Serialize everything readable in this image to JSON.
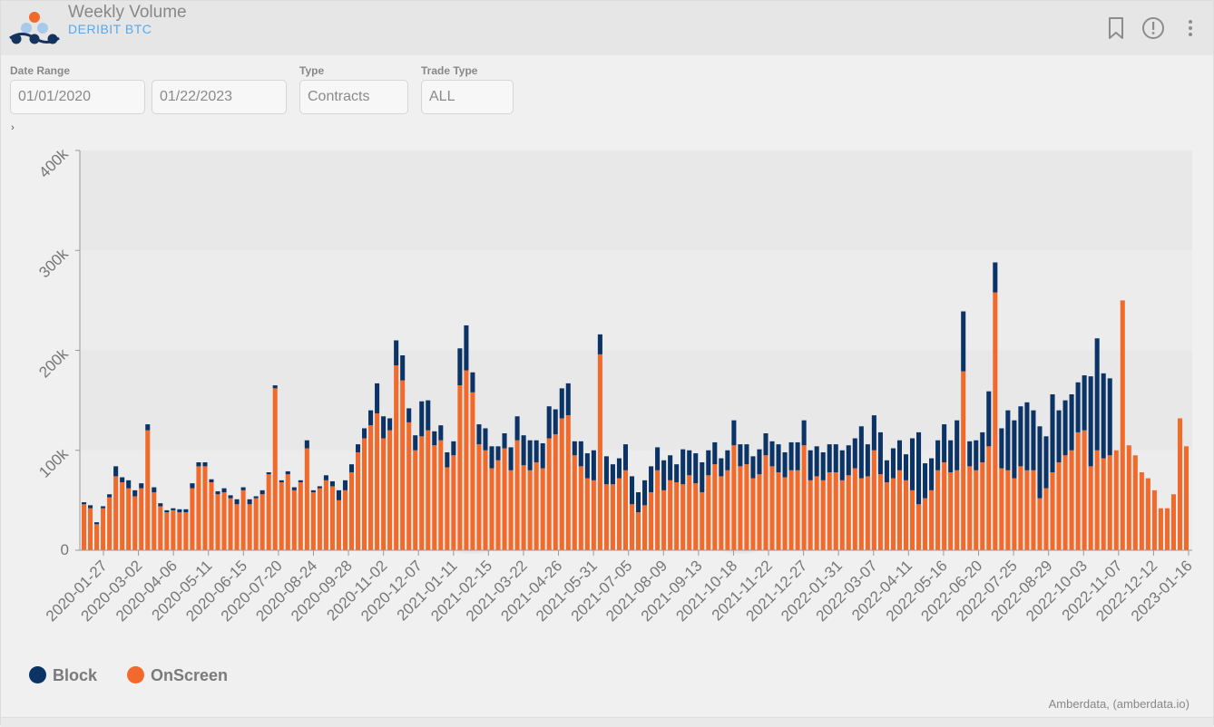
{
  "header": {
    "title": "Weekly Volume",
    "subtitle": "DERIBIT BTC"
  },
  "filters": {
    "date_range_label": "Date Range",
    "start_date": "01/01/2020",
    "end_date": "01/22/2023",
    "type_label": "Type",
    "type_value": "Contracts",
    "trade_type_label": "Trade Type",
    "trade_type_value": "ALL"
  },
  "colors": {
    "block": "#0b3366",
    "onscreen": "#f26a2b"
  },
  "legend": [
    {
      "name": "Block"
    },
    {
      "name": "OnScreen"
    }
  ],
  "credit": "Amberdata, (amberdata.io)",
  "chart_data": {
    "type": "bar",
    "stacked": true,
    "ylim": [
      0,
      400000
    ],
    "yticks": [
      0,
      100000,
      200000,
      300000,
      400000
    ],
    "ytick_labels": [
      "0",
      "100k",
      "200k",
      "300k",
      "400k"
    ],
    "xtick_labels": [
      "2020-01-27",
      "2020-03-02",
      "2020-04-06",
      "2020-05-11",
      "2020-06-15",
      "2020-07-20",
      "2020-08-24",
      "2020-09-28",
      "2020-11-02",
      "2020-12-07",
      "2021-01-11",
      "2021-02-15",
      "2021-03-22",
      "2021-04-26",
      "2021-05-31",
      "2021-07-05",
      "2021-08-09",
      "2021-09-13",
      "2021-10-18",
      "2021-11-22",
      "2021-12-27",
      "2022-01-31",
      "2022-03-07",
      "2022-04-11",
      "2022-05-16",
      "2022-06-20",
      "2022-07-25",
      "2022-08-29",
      "2022-10-03",
      "2022-11-07",
      "2022-12-12",
      "2023-01-16"
    ],
    "legend_position": "bottom-left",
    "grid": true,
    "series": [
      {
        "name": "Block",
        "values": [
          2000,
          3000,
          2000,
          2000,
          3000,
          10000,
          5000,
          8000,
          6000,
          5000,
          6000,
          5000,
          3000,
          2000,
          2000,
          3000,
          3000,
          5000,
          4000,
          4000,
          3000,
          3000,
          4000,
          3000,
          5000,
          3000,
          5000,
          2000,
          4000,
          2000,
          3000,
          2000,
          3000,
          3000,
          2000,
          8000,
          2000,
          2000,
          5000,
          5000,
          10000,
          10000,
          8000,
          8000,
          10000,
          15000,
          30000,
          22000,
          12000,
          25000,
          25000,
          14000,
          15000,
          35000,
          30000,
          14000,
          15000,
          15000,
          14000,
          37000,
          45000,
          20000,
          20000,
          22000,
          22000,
          14000,
          15000,
          23000,
          24000,
          30000,
          30000,
          22000,
          25000,
          32000,
          25000,
          30000,
          32000,
          14000,
          25000,
          25000,
          30000,
          20000,
          28000,
          20000,
          20000,
          26000,
          28000,
          20000,
          25000,
          26000,
          23000,
          30000,
          25000,
          18000,
          35000,
          25000,
          30000,
          30000,
          25000,
          22000,
          18000,
          20000,
          25000,
          22000,
          20000,
          22000,
          25000,
          22000,
          25000,
          28000,
          25000,
          28000,
          28000,
          25000,
          30000,
          30000,
          28000,
          28000,
          28000,
          30000,
          30000,
          30000,
          52000,
          32000,
          35000,
          42000,
          22000,
          30000,
          30000,
          26000,
          52000,
          72000,
          35000,
          32000,
          30000,
          38000,
          32000,
          50000,
          60000,
          25000,
          30000,
          30000,
          55000,
          30000,
          40000,
          60000,
          58000,
          60000,
          68000,
          60000,
          72000,
          52000,
          78000,
          52000,
          55000,
          56000,
          50000,
          55000,
          90000,
          112000,
          85000,
          77000
        ],
        "values_note": ""
      },
      {
        "name": "OnScreen",
        "values": [
          46000,
          42000,
          26000,
          42000,
          53000,
          74000,
          68000,
          62000,
          54000,
          62000,
          120000,
          58000,
          44000,
          38000,
          40000,
          38000,
          38000,
          62000,
          84000,
          84000,
          68000,
          56000,
          58000,
          52000,
          46000,
          60000,
          46000,
          52000,
          56000,
          76000,
          162000,
          68000,
          76000,
          60000,
          68000,
          102000,
          58000,
          62000,
          70000,
          64000,
          50000,
          60000,
          78000,
          98000,
          112000,
          125000,
          137000,
          112000,
          120000,
          185000,
          170000,
          128000,
          100000,
          114000,
          120000,
          105000,
          110000,
          83000,
          95000,
          165000,
          180000,
          158000,
          106000,
          100000,
          82000,
          90000,
          102000,
          80000,
          110000,
          85000,
          80000,
          88000,
          82000,
          112000,
          116000,
          132000,
          135000,
          95000,
          84000,
          72000,
          70000,
          196000,
          66000,
          66000,
          72000,
          80000,
          46000,
          38000,
          45000,
          58000,
          80000,
          60000,
          70000,
          68000,
          66000,
          75000,
          67000,
          58000,
          75000,
          86000,
          74000,
          80000,
          105000,
          84000,
          86000,
          72000,
          76000,
          95000,
          84000,
          78000,
          73000,
          80000,
          80000,
          105000,
          70000,
          74000,
          70000,
          78000,
          78000,
          70000,
          75000,
          82000,
          72000,
          74000,
          100000,
          76000,
          68000,
          72000,
          80000,
          70000,
          60000,
          46000,
          52000,
          60000,
          80000,
          88000,
          78000,
          80000,
          179000,
          84000,
          80000,
          88000,
          104000,
          258000,
          82000,
          80000,
          72000,
          84000,
          80000,
          80000,
          52000,
          62000,
          78000,
          88000,
          95000,
          100000,
          118000,
          120000,
          84000,
          100000,
          92000,
          95000,
          100000,
          250000,
          105000,
          95000,
          78000,
          72000,
          60000,
          42000,
          42000,
          56000,
          132000,
          104000
        ]
      }
    ]
  }
}
